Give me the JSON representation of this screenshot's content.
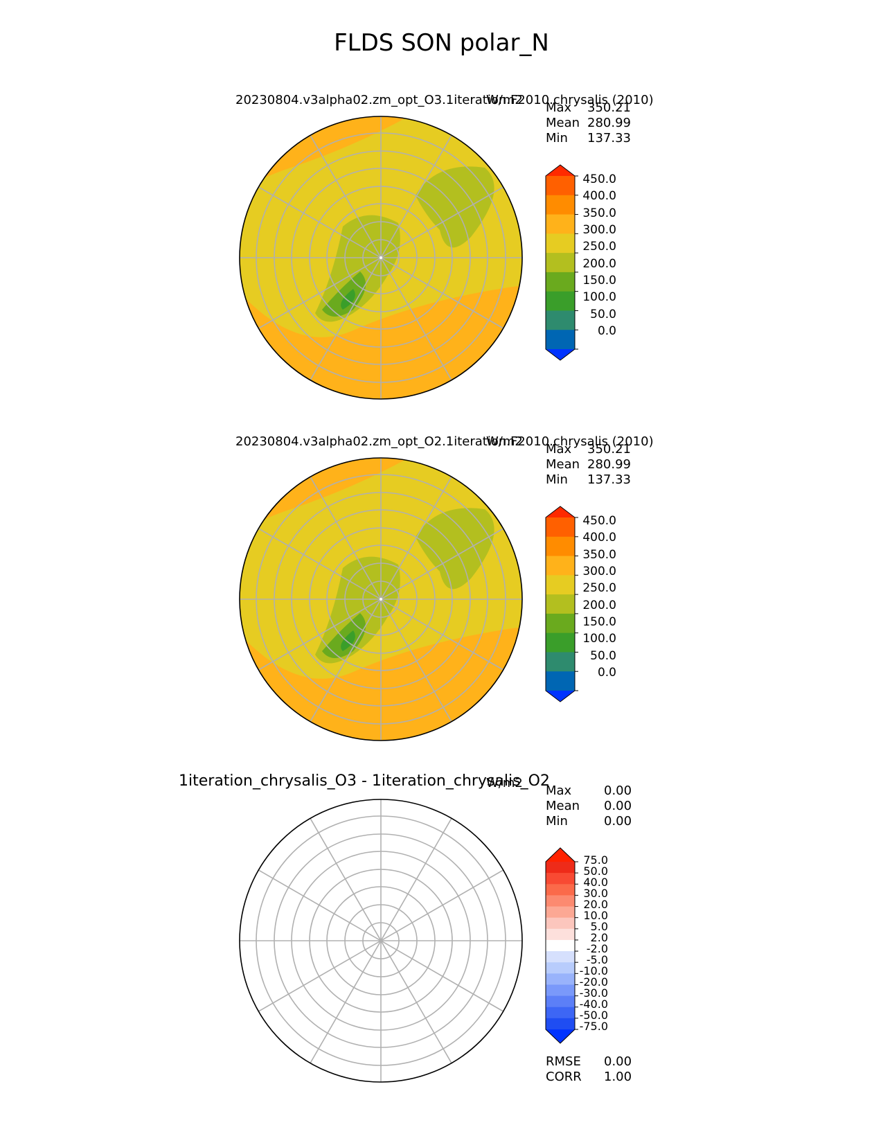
{
  "title": "FLDS SON polar_N",
  "panels": [
    {
      "title_left": "20230804.v3alpha02.zm_opt_O3.1iteration.F2010.chrysalis (2010)",
      "units": "W/m2",
      "stats": [
        {
          "label": "Max",
          "value": "350.21"
        },
        {
          "label": "Mean",
          "value": "280.99"
        },
        {
          "label": "Min",
          "value": "137.33"
        }
      ],
      "colorbar_ticks": [
        "450.0",
        "400.0",
        "350.0",
        "300.0",
        "250.0",
        "200.0",
        "150.0",
        "100.0",
        "50.0",
        "0.0"
      ]
    },
    {
      "title_left": "20230804.v3alpha02.zm_opt_O2.1iteration.F2010.chrysalis (2010)",
      "units": "W/m2",
      "stats": [
        {
          "label": "Max",
          "value": "350.21"
        },
        {
          "label": "Mean",
          "value": "280.99"
        },
        {
          "label": "Min",
          "value": "137.33"
        }
      ],
      "colorbar_ticks": [
        "450.0",
        "400.0",
        "350.0",
        "300.0",
        "250.0",
        "200.0",
        "150.0",
        "100.0",
        "50.0",
        "0.0"
      ]
    },
    {
      "title_left": "1iteration_chrysalis_O3 - 1iteration_chrysalis_O2",
      "units": "W/m2",
      "stats": [
        {
          "label": "Max",
          "value": "0.00"
        },
        {
          "label": "Mean",
          "value": "0.00"
        },
        {
          "label": "Min",
          "value": "0.00"
        }
      ],
      "colorbar_ticks": [
        "75.0",
        "50.0",
        "40.0",
        "30.0",
        "20.0",
        "10.0",
        "5.0",
        "2.0",
        "-2.0",
        "-5.0",
        "-10.0",
        "-20.0",
        "-30.0",
        "-40.0",
        "-50.0",
        "-75.0"
      ],
      "footer_stats": [
        {
          "label": "RMSE",
          "value": "0.00"
        },
        {
          "label": "CORR",
          "value": "1.00"
        }
      ]
    }
  ],
  "chart_data": {
    "type": "heatmap",
    "projection": "north polar stereographic",
    "title": "FLDS SON polar_N",
    "units": "W/m2",
    "panels": [
      {
        "name": "test",
        "max": 350.21,
        "mean": 280.99,
        "min": 137.33,
        "levels": [
          0,
          50,
          100,
          150,
          200,
          250,
          300,
          350,
          400,
          450
        ],
        "colors": [
          "#0033ff",
          "#0066b3",
          "#2e8b6e",
          "#3a9e2a",
          "#6aaa1e",
          "#b3bf1f",
          "#e6cc22",
          "#ffb21a",
          "#ff8c00",
          "#ff6000",
          "#ff2a00"
        ]
      },
      {
        "name": "reference",
        "max": 350.21,
        "mean": 280.99,
        "min": 137.33,
        "levels": [
          0,
          50,
          100,
          150,
          200,
          250,
          300,
          350,
          400,
          450
        ],
        "colors": [
          "#0033ff",
          "#0066b3",
          "#2e8b6e",
          "#3a9e2a",
          "#6aaa1e",
          "#b3bf1f",
          "#e6cc22",
          "#ffb21a",
          "#ff8c00",
          "#ff6000",
          "#ff2a00"
        ]
      },
      {
        "name": "difference",
        "max": 0.0,
        "mean": 0.0,
        "min": 0.0,
        "rmse": 0.0,
        "corr": 1.0,
        "levels": [
          -75,
          -50,
          -40,
          -30,
          -20,
          -10,
          -5,
          -2,
          2,
          5,
          10,
          20,
          30,
          40,
          50,
          75
        ],
        "colors": [
          "#0033ff",
          "#1f4df2",
          "#3d66f5",
          "#5c7ff7",
          "#7a99fa",
          "#99b3fb",
          "#b8ccfc",
          "#d6e0fd",
          "#ffffff",
          "#fde0dc",
          "#fcc6bd",
          "#fca894",
          "#fc8a70",
          "#fb6a4a",
          "#f84a33",
          "#ee2b19",
          "#ff2200"
        ]
      }
    ]
  }
}
